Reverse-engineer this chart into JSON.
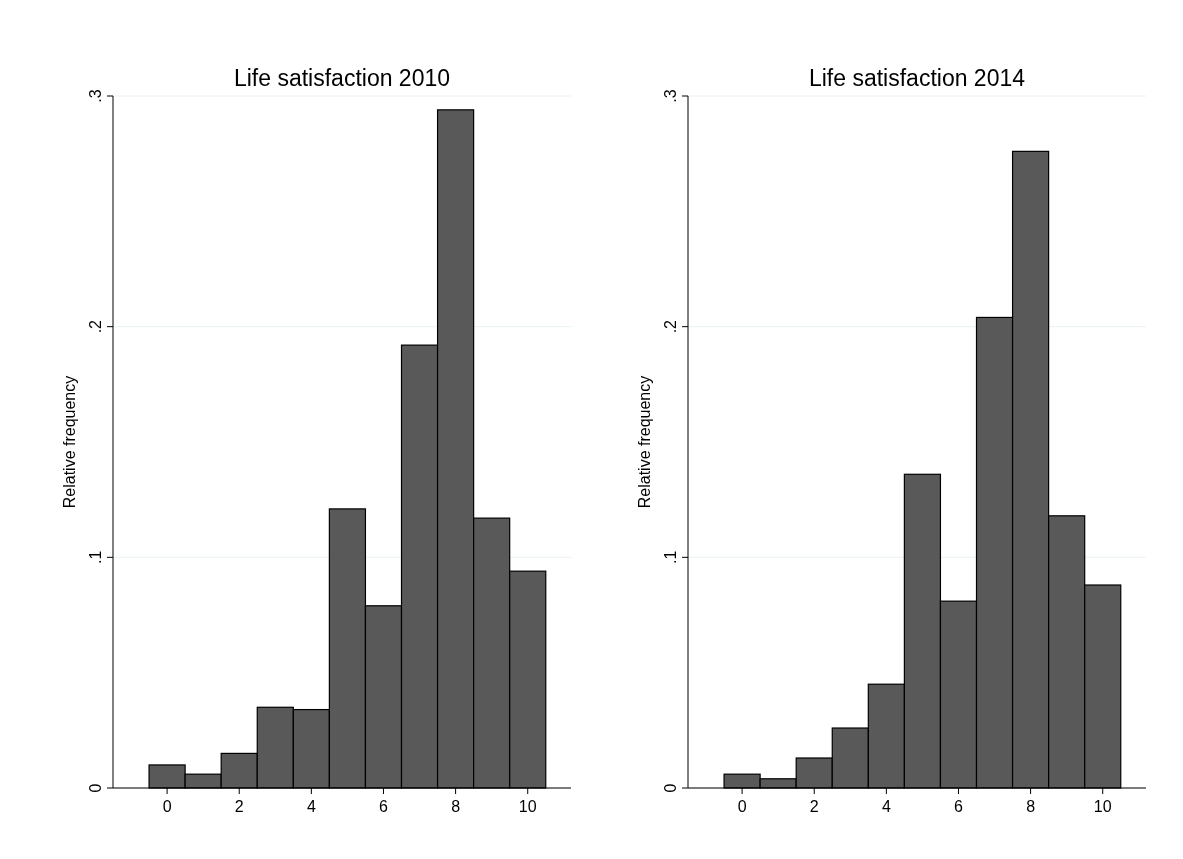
{
  "chart_data": [
    {
      "type": "histogram",
      "title": "Life satisfaction 2010",
      "ylabel": "Relative frequency",
      "bins": [
        -0.5,
        0.5,
        1.5,
        2.5,
        3.5,
        4.5,
        5.5,
        6.5,
        7.5,
        8.5,
        9.5,
        10.5
      ],
      "values": [
        0.01,
        0.006,
        0.015,
        0.035,
        0.034,
        0.121,
        0.079,
        0.192,
        0.294,
        0.117,
        0.094
      ],
      "color": "#595959",
      "xlim": [
        -1.5,
        11.2
      ],
      "xticks": [
        0,
        2,
        4,
        6,
        8,
        10
      ],
      "ylim": [
        0,
        0.3
      ],
      "yticks": [
        {
          "value": 0,
          "label": "0"
        },
        {
          "value": 0.1,
          "label": ".1"
        },
        {
          "value": 0.2,
          "label": ".2"
        },
        {
          "value": 0.3,
          "label": ".3"
        }
      ],
      "grid": "y"
    },
    {
      "type": "histogram",
      "title": "Life satisfaction 2014",
      "ylabel": "Relative frequency",
      "bins": [
        -0.5,
        0.5,
        1.5,
        2.5,
        3.5,
        4.5,
        5.5,
        6.5,
        7.5,
        8.5,
        9.5,
        10.5
      ],
      "values": [
        0.006,
        0.004,
        0.013,
        0.026,
        0.045,
        0.136,
        0.081,
        0.204,
        0.276,
        0.118,
        0.088
      ],
      "color": "#595959",
      "xlim": [
        -1.5,
        11.2
      ],
      "xticks": [
        0,
        2,
        4,
        6,
        8,
        10
      ],
      "ylim": [
        0,
        0.3
      ],
      "yticks": [
        {
          "value": 0,
          "label": "0"
        },
        {
          "value": 0.1,
          "label": ".1"
        },
        {
          "value": 0.2,
          "label": ".2"
        },
        {
          "value": 0.3,
          "label": ".3"
        }
      ],
      "grid": "y"
    }
  ]
}
